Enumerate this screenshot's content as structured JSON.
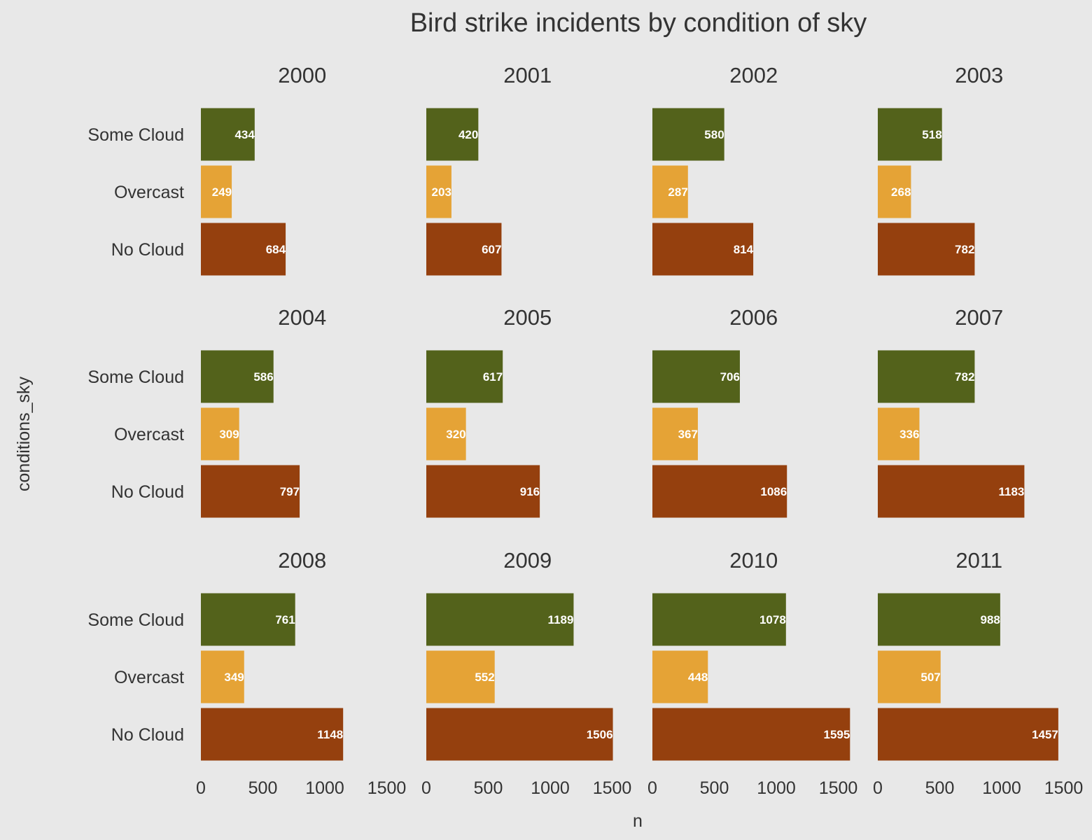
{
  "chart_data": {
    "type": "bar",
    "orientation": "horizontal",
    "faceted": true,
    "title": "Bird strike incidents by condition of sky",
    "xlabel": "n",
    "ylabel": "conditions_sky",
    "xlim": [
      0,
      1600
    ],
    "x_ticks": [
      "0",
      "500",
      "1000",
      "1500"
    ],
    "x_tick_values": [
      0,
      500,
      1000,
      1500
    ],
    "categories": [
      "Some Cloud",
      "Overcast",
      "No Cloud"
    ],
    "colors": {
      "Some Cloud": "#53621b",
      "Overcast": "#e5a336",
      "No Cloud": "#95400e"
    },
    "grid": false,
    "legend": "none",
    "facets": [
      {
        "title": "2000",
        "values": [
          434,
          249,
          684
        ]
      },
      {
        "title": "2001",
        "values": [
          420,
          203,
          607
        ]
      },
      {
        "title": "2002",
        "values": [
          580,
          287,
          814
        ]
      },
      {
        "title": "2003",
        "values": [
          518,
          268,
          782
        ]
      },
      {
        "title": "2004",
        "values": [
          586,
          309,
          797
        ]
      },
      {
        "title": "2005",
        "values": [
          617,
          320,
          916
        ]
      },
      {
        "title": "2006",
        "values": [
          706,
          367,
          1086
        ]
      },
      {
        "title": "2007",
        "values": [
          782,
          336,
          1183
        ]
      },
      {
        "title": "2008",
        "values": [
          761,
          349,
          1148
        ]
      },
      {
        "title": "2009",
        "values": [
          1189,
          552,
          1506
        ]
      },
      {
        "title": "2010",
        "values": [
          1078,
          448,
          1595
        ]
      },
      {
        "title": "2011",
        "values": [
          988,
          507,
          1457
        ]
      }
    ]
  }
}
